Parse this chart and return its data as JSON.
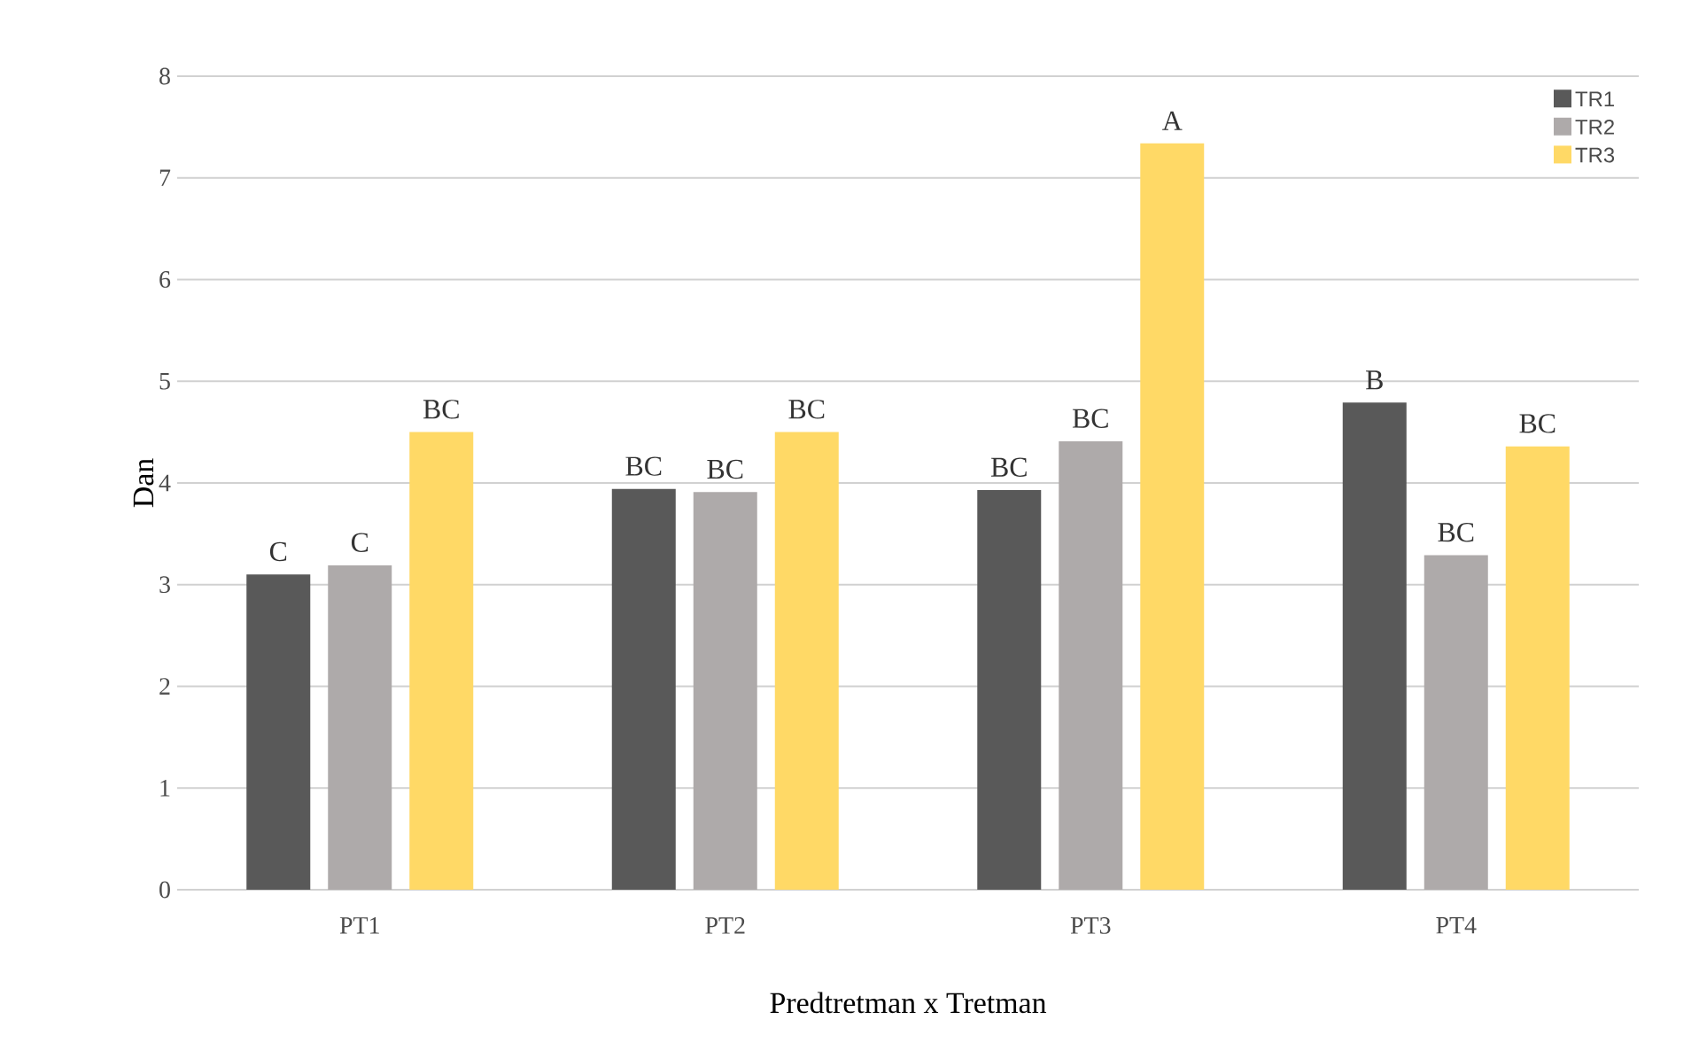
{
  "chart_data": {
    "type": "bar",
    "xlabel": "Predtretman x Tretman",
    "ylabel": "Dan",
    "categories": [
      "PT1",
      "PT2",
      "PT3",
      "PT4"
    ],
    "series": [
      {
        "name": "TR1",
        "color": "#595959",
        "values": [
          3.1,
          3.94,
          3.93,
          4.79
        ],
        "value_labels": [
          "C",
          "BC",
          "BC",
          "B"
        ]
      },
      {
        "name": "TR2",
        "color": "#aeaaaa",
        "values": [
          3.19,
          3.91,
          4.41,
          3.29
        ],
        "value_labels": [
          "C",
          "BC",
          "BC",
          "BC"
        ]
      },
      {
        "name": "TR3",
        "color": "#ffd966",
        "values": [
          4.5,
          4.5,
          7.34,
          4.36
        ],
        "value_labels": [
          "BC",
          "BC",
          "A",
          "BC"
        ]
      }
    ],
    "ylim": [
      0,
      8
    ],
    "yticks": [
      0,
      1,
      2,
      3,
      4,
      5,
      6,
      7,
      8
    ],
    "grid": "y",
    "legend": "top right"
  }
}
